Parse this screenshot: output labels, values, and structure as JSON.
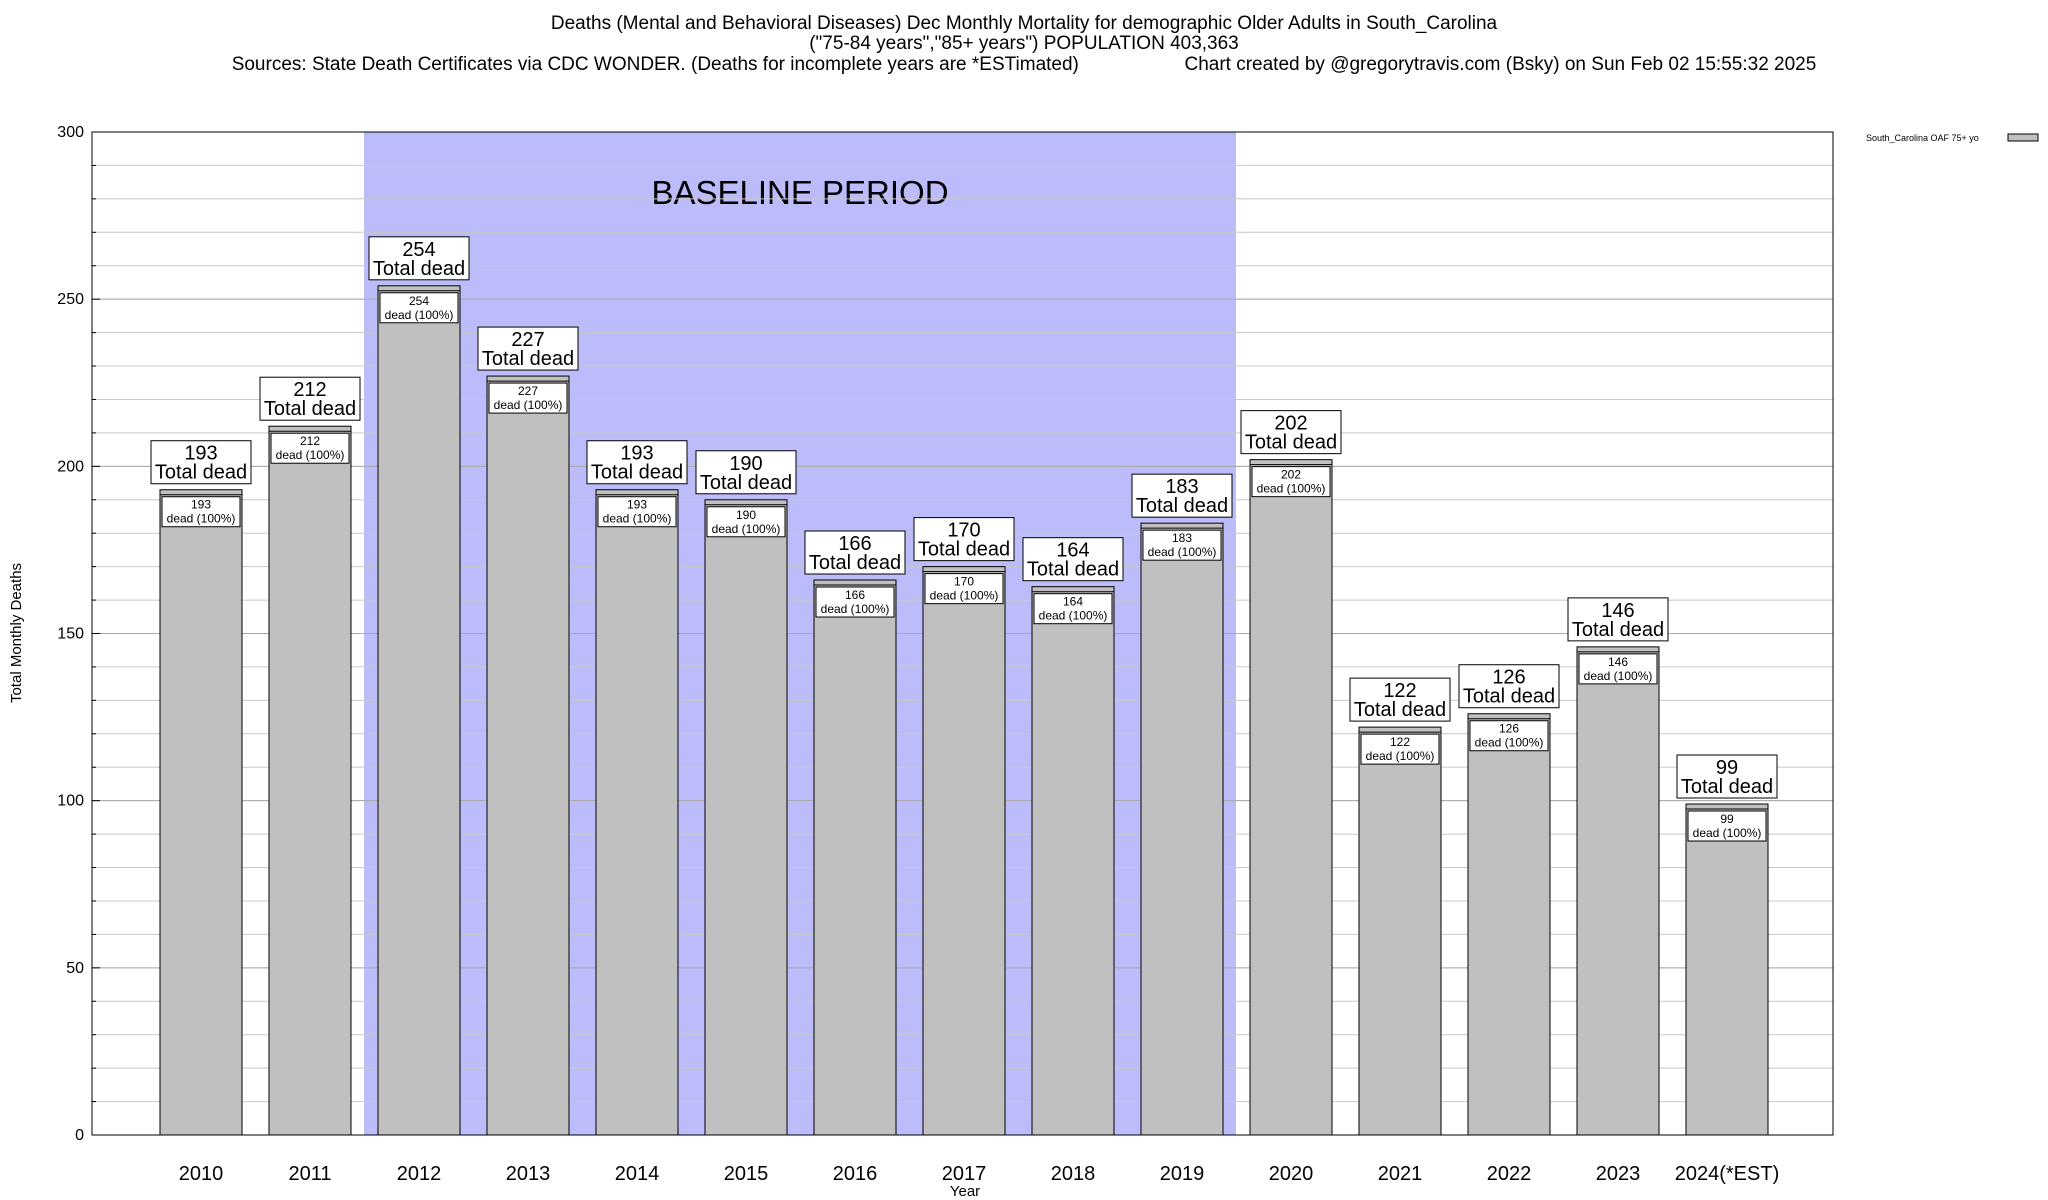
{
  "title": {
    "line1": "Deaths (Mental and Behavioral Diseases) Dec Monthly Mortality for demographic Older Adults in South_Carolina",
    "line2": "(\"75-84 years\",\"85+ years\") POPULATION 403,363",
    "sources": "Sources: State Death Certificates via CDC WONDER. (Deaths for incomplete years are *ESTimated)",
    "credit": "Chart created by @gregorytravis.com (Bsky) on Sun Feb 02 15:55:32 2025"
  },
  "chart_data": {
    "type": "bar",
    "categories": [
      "2010",
      "2011",
      "2012",
      "2013",
      "2014",
      "2015",
      "2016",
      "2017",
      "2018",
      "2019",
      "2020",
      "2021",
      "2022",
      "2023",
      "2024(*EST)"
    ],
    "series": [
      {
        "name": "South_Carolina OAF 75+ yo",
        "values": [
          193,
          212,
          254,
          227,
          193,
          190,
          166,
          170,
          164,
          183,
          202,
          122,
          126,
          146,
          99
        ]
      }
    ],
    "xlabel": "Year",
    "ylabel": "Total Monthly Deaths",
    "ylim": [
      0,
      300
    ],
    "yticks": [
      0,
      50,
      100,
      150,
      200,
      250,
      300
    ],
    "grid": true,
    "legend_position": "top-right",
    "top_label_suffix": "Total dead",
    "inner_label_suffix": "dead (100%)",
    "annotation": {
      "text": "BASELINE PERIOD",
      "from_category": "2012",
      "to_category": "2019"
    },
    "colors": {
      "bar_fill": "#c0c0c0",
      "bar_stroke": "#000000",
      "baseline_shade": "#bcbcfb",
      "grid": "#c8c8c8"
    }
  }
}
